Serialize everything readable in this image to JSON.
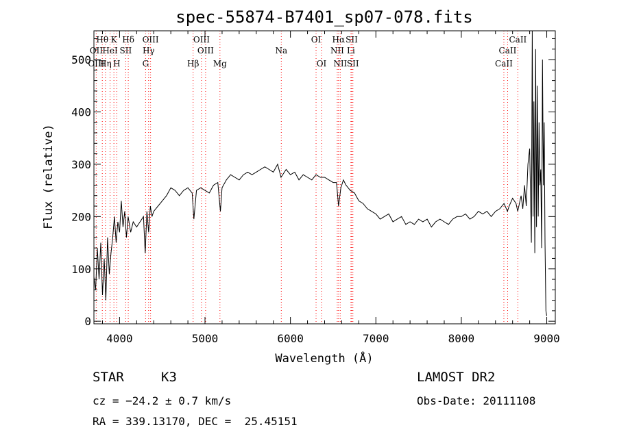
{
  "chart_data": {
    "type": "line",
    "title": "spec-55874-B7401_sp07-078.fits",
    "xlabel": "Wavelength (Å)",
    "ylabel": "Flux (relative)",
    "xlim": [
      3700,
      9100
    ],
    "ylim": [
      -5,
      555
    ],
    "x_ticks": [
      4000,
      5000,
      6000,
      7000,
      8000,
      9000
    ],
    "y_ticks": [
      0,
      100,
      200,
      300,
      400,
      500
    ],
    "grid": false,
    "series": [
      {
        "x": [
          3700,
          3720,
          3740,
          3760,
          3780,
          3800,
          3820,
          3840,
          3860,
          3880,
          3900,
          3920,
          3940,
          3960,
          3980,
          4000,
          4020,
          4040,
          4060,
          4080,
          4100,
          4130,
          4160,
          4200,
          4240,
          4280,
          4300,
          4320,
          4340,
          4360,
          4380,
          4400,
          4450,
          4500,
          4550,
          4600,
          4650,
          4700,
          4750,
          4800,
          4850,
          4870,
          4900,
          4950,
          5000,
          5050,
          5100,
          5150,
          5180,
          5200,
          5250,
          5300,
          5350,
          5400,
          5450,
          5500,
          5550,
          5600,
          5650,
          5700,
          5750,
          5800,
          5850,
          5890,
          5950,
          6000,
          6050,
          6100,
          6150,
          6200,
          6250,
          6300,
          6350,
          6400,
          6450,
          6500,
          6540,
          6563,
          6590,
          6620,
          6650,
          6700,
          6750,
          6800,
          6850,
          6900,
          6950,
          7000,
          7050,
          7100,
          7150,
          7200,
          7250,
          7300,
          7350,
          7400,
          7450,
          7500,
          7550,
          7600,
          7650,
          7700,
          7750,
          7800,
          7850,
          7900,
          7950,
          8000,
          8050,
          8100,
          8150,
          8200,
          8250,
          8300,
          8350,
          8400,
          8450,
          8500,
          8540,
          8560,
          8600,
          8640,
          8660,
          8700,
          8720,
          8740,
          8760,
          8780,
          8800,
          8810,
          8820,
          8830,
          8840,
          8850,
          8860,
          8870,
          8880,
          8890,
          8900,
          8910,
          8920,
          8930,
          8940,
          8950,
          8960,
          8970,
          8980,
          8990,
          9000
        ],
        "y": [
          85,
          60,
          140,
          80,
          150,
          50,
          120,
          40,
          160,
          90,
          130,
          160,
          200,
          150,
          190,
          170,
          230,
          180,
          210,
          160,
          200,
          170,
          190,
          180,
          190,
          200,
          130,
          210,
          170,
          220,
          200,
          210,
          220,
          230,
          240,
          255,
          250,
          240,
          250,
          255,
          245,
          195,
          250,
          255,
          250,
          245,
          260,
          265,
          210,
          255,
          270,
          280,
          275,
          270,
          280,
          285,
          280,
          285,
          290,
          295,
          290,
          285,
          300,
          275,
          290,
          280,
          285,
          270,
          280,
          275,
          270,
          280,
          275,
          275,
          270,
          265,
          265,
          220,
          255,
          270,
          260,
          250,
          245,
          230,
          225,
          215,
          210,
          205,
          195,
          200,
          205,
          190,
          195,
          200,
          185,
          190,
          185,
          195,
          190,
          195,
          180,
          190,
          195,
          190,
          185,
          195,
          200,
          200,
          205,
          195,
          200,
          210,
          205,
          210,
          200,
          210,
          215,
          225,
          210,
          220,
          235,
          225,
          210,
          240,
          215,
          260,
          220,
          300,
          330,
          240,
          150,
          560,
          200,
          420,
          130,
          520,
          180,
          450,
          200,
          380,
          260,
          290,
          140,
          500,
          260,
          380,
          150,
          20,
          10
        ]
      }
    ],
    "spectral_lines": [
      {
        "label": "Hθ",
        "x": 3798,
        "row": 1
      },
      {
        "label": "K",
        "x": 3934,
        "row": 1
      },
      {
        "label": "Hδ",
        "x": 4102,
        "row": 1
      },
      {
        "label": "OIII",
        "x": 4363,
        "row": 1
      },
      {
        "label": "OIII",
        "x": 4959,
        "row": 1
      },
      {
        "label": "OI",
        "x": 6300,
        "row": 1
      },
      {
        "label": "Hα",
        "x": 6563,
        "row": 1
      },
      {
        "label": "SII",
        "x": 6717,
        "row": 1
      },
      {
        "label": "CaII",
        "x": 8662,
        "row": 1
      },
      {
        "label": "OII",
        "x": 3727,
        "row": 2
      },
      {
        "label": "HeI",
        "x": 3889,
        "row": 2
      },
      {
        "label": "SII",
        "x": 4072,
        "row": 2
      },
      {
        "label": "Hγ",
        "x": 4340,
        "row": 2
      },
      {
        "label": "OIII",
        "x": 5007,
        "row": 2
      },
      {
        "label": "Na",
        "x": 5893,
        "row": 2
      },
      {
        "label": "NII",
        "x": 6548,
        "row": 2
      },
      {
        "label": "Li",
        "x": 6708,
        "row": 2
      },
      {
        "label": "CaII",
        "x": 8542,
        "row": 2
      },
      {
        "label": "OIII",
        "x": 3727,
        "row": 3
      },
      {
        "label": "Hη",
        "x": 3835,
        "row": 3
      },
      {
        "label": "H",
        "x": 3968,
        "row": 3
      },
      {
        "label": "G",
        "x": 4305,
        "row": 3
      },
      {
        "label": "Hβ",
        "x": 4861,
        "row": 3
      },
      {
        "label": "Mg",
        "x": 5175,
        "row": 3
      },
      {
        "label": "OI",
        "x": 6364,
        "row": 3
      },
      {
        "label": "NII",
        "x": 6583,
        "row": 3
      },
      {
        "label": "SII",
        "x": 6731,
        "row": 3
      },
      {
        "label": "CaII",
        "x": 8498,
        "row": 3
      }
    ],
    "colors": {
      "spectrum": "#000000",
      "line_markers": "#ff0000"
    }
  },
  "info": {
    "object_type": "STAR",
    "subclass": "K3",
    "survey": "LAMOST DR2",
    "cz": "cz = −24.2 ± 0.7 km/s",
    "obs_date": "Obs-Date: 20111108",
    "coords": "RA = 339.13170, DEC =  25.45151"
  }
}
